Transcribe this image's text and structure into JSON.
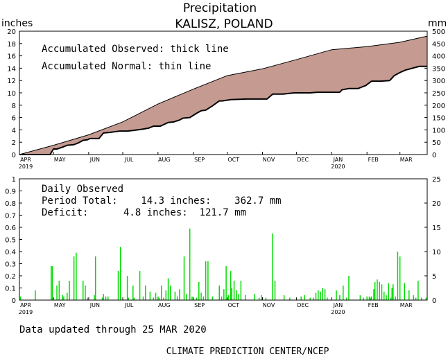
{
  "header": {
    "title": "Precipitation",
    "location": "KALISZ, POLAND",
    "left_unit": "inches",
    "right_unit": "mm"
  },
  "footer": {
    "updated": "Data updated through 25 MAR 2020",
    "credit": "CLIMATE PREDICTION CENTER/NCEP"
  },
  "colors": {
    "fill": "#c49a91",
    "bars": "#00dd00",
    "line": "#000000"
  },
  "chart_data": [
    {
      "type": "area",
      "annotations": [
        "Accumulated Observed: thick line",
        "Accumulated Normal: thin line"
      ],
      "ylim": [
        0,
        20
      ],
      "y_ticks": [
        "0",
        "2",
        "4",
        "6",
        "8",
        "10",
        "12",
        "14",
        "16",
        "18",
        "20"
      ],
      "y2lim": [
        0,
        500
      ],
      "y2_ticks": [
        "0",
        "50",
        "100",
        "150",
        "200",
        "250",
        "300",
        "350",
        "400",
        "450",
        "500"
      ],
      "month_labels": [
        "APR",
        "MAY",
        "JUN",
        "JUL",
        "AUG",
        "SEP",
        "OCT",
        "NOV",
        "DEC",
        "JAN",
        "FEB",
        "MAR"
      ],
      "year_labels": [
        {
          "month": "APR",
          "year": "2019"
        },
        {
          "month": "JAN",
          "year": "2020"
        }
      ],
      "x_days": [
        0,
        30,
        61,
        91,
        122,
        153,
        183,
        214,
        244,
        275,
        306,
        335,
        359
      ],
      "series": [
        {
          "name": "Accumulated Normal",
          "x": [
            0,
            30,
            61,
            91,
            122,
            153,
            183,
            214,
            244,
            275,
            306,
            335,
            359
          ],
          "values": [
            0,
            1.5,
            3.2,
            5.3,
            8.2,
            10.6,
            12.8,
            13.9,
            15.4,
            17.0,
            17.5,
            18.2,
            19.2
          ]
        },
        {
          "name": "Accumulated Observed",
          "x": [
            0,
            27,
            30,
            33,
            38,
            42,
            48,
            52,
            56,
            60,
            62,
            70,
            74,
            80,
            84,
            88,
            95,
            100,
            108,
            114,
            118,
            124,
            131,
            136,
            141,
            144,
            150,
            156,
            160,
            164,
            170,
            176,
            179,
            186,
            200,
            218,
            223,
            232,
            242,
            256,
            262,
            282,
            284,
            290,
            293,
            298,
            305,
            310,
            318,
            326,
            330,
            335,
            340,
            352,
            359
          ],
          "values": [
            0,
            0,
            0.9,
            0.9,
            1.2,
            1.5,
            1.6,
            1.9,
            2.3,
            2.4,
            2.6,
            2.6,
            3.5,
            3.6,
            3.7,
            3.8,
            3.8,
            3.9,
            4.1,
            4.3,
            4.6,
            4.6,
            5.2,
            5.3,
            5.6,
            5.9,
            6.0,
            6.7,
            7.1,
            7.2,
            7.9,
            8.7,
            8.7,
            8.9,
            9.0,
            9.0,
            9.8,
            9.8,
            10.0,
            10.0,
            10.1,
            10.1,
            10.5,
            10.7,
            10.7,
            10.7,
            11.2,
            11.9,
            11.9,
            12.0,
            12.8,
            13.3,
            13.7,
            14.3,
            14.3
          ]
        }
      ]
    },
    {
      "type": "bar",
      "annotations": [
        "Daily Observed",
        "Period Total:    14.3 inches:    362.7 mm",
        "Deficit:      4.8 inches:  121.7 mm"
      ],
      "ylim": [
        0,
        1
      ],
      "y_ticks": [
        "0",
        "0.1",
        "0.2",
        "0.3",
        "0.4",
        "0.5",
        "0.6",
        "0.7",
        "0.8",
        "0.9",
        "1"
      ],
      "y2lim": [
        0,
        25
      ],
      "y2_ticks": [
        "0",
        "5",
        "10",
        "15",
        "20",
        "25"
      ],
      "month_labels": [
        "APR",
        "MAY",
        "JUN",
        "JUL",
        "AUG",
        "SEP",
        "OCT",
        "NOV",
        "DEC",
        "JAN",
        "FEB",
        "MAR"
      ],
      "year_labels": [
        {
          "month": "APR",
          "year": "2019"
        },
        {
          "month": "JAN",
          "year": "2020"
        }
      ],
      "x_days": [
        0,
        30,
        61,
        91,
        122,
        153,
        183,
        214,
        244,
        275,
        306,
        335,
        359
      ],
      "days": [
        1,
        14,
        28,
        29,
        33,
        35,
        38,
        39,
        42,
        44,
        48,
        50,
        56,
        58,
        60,
        66,
        67,
        73,
        74,
        76,
        78,
        87,
        89,
        95,
        96,
        100,
        101,
        106,
        109,
        111,
        115,
        118,
        120,
        122,
        123,
        125,
        127,
        129,
        131,
        133,
        137,
        139,
        141,
        145,
        147,
        150,
        152,
        156,
        158,
        160,
        162,
        164,
        166,
        170,
        176,
        178,
        180,
        182,
        184,
        186,
        187,
        189,
        191,
        193,
        195,
        199,
        207,
        211,
        213,
        217,
        223,
        225,
        233,
        238,
        248,
        251,
        256,
        259,
        261,
        263,
        265,
        267,
        269,
        271,
        279,
        282,
        285,
        288,
        290,
        300,
        303,
        306,
        308,
        309,
        310,
        312,
        313,
        315,
        317,
        319,
        321,
        323,
        325,
        327,
        328,
        329,
        331,
        333,
        335,
        339,
        343,
        347,
        349,
        351,
        354,
        358
      ],
      "values": [
        0.03,
        0.08,
        0.28,
        0.28,
        0.12,
        0.16,
        0.04,
        0.03,
        0.06,
        0.16,
        0.36,
        0.39,
        0.16,
        0.12,
        0.02,
        0.04,
        0.36,
        0.02,
        0.05,
        0.03,
        0.03,
        0.24,
        0.44,
        0.2,
        0.02,
        0.12,
        0.02,
        0.24,
        0.03,
        0.12,
        0.07,
        0.02,
        0.06,
        0.03,
        0.02,
        0.12,
        0.02,
        0.08,
        0.18,
        0.12,
        0.07,
        0.03,
        0.09,
        0.36,
        0.05,
        0.59,
        0.03,
        0.02,
        0.15,
        0.06,
        0.03,
        0.32,
        0.32,
        0.03,
        0.12,
        0.03,
        0.09,
        0.28,
        0.04,
        0.24,
        0.1,
        0.16,
        0.08,
        0.05,
        0.16,
        0.04,
        0.05,
        0.02,
        0.04,
        0.02,
        0.55,
        0.16,
        0.04,
        0.02,
        0.03,
        0.04,
        0.02,
        0.02,
        0.06,
        0.08,
        0.07,
        0.1,
        0.09,
        0.02,
        0.08,
        0.04,
        0.12,
        0.02,
        0.2,
        0.04,
        0.02,
        0.03,
        0.03,
        0.02,
        0.03,
        0.09,
        0.15,
        0.17,
        0.15,
        0.13,
        0.07,
        0.04,
        0.14,
        0.02,
        0.1,
        0.13,
        0.03,
        0.4,
        0.36,
        0.14,
        0.08,
        0.04,
        0.02,
        0.16,
        0.02,
        0.02
      ]
    }
  ]
}
